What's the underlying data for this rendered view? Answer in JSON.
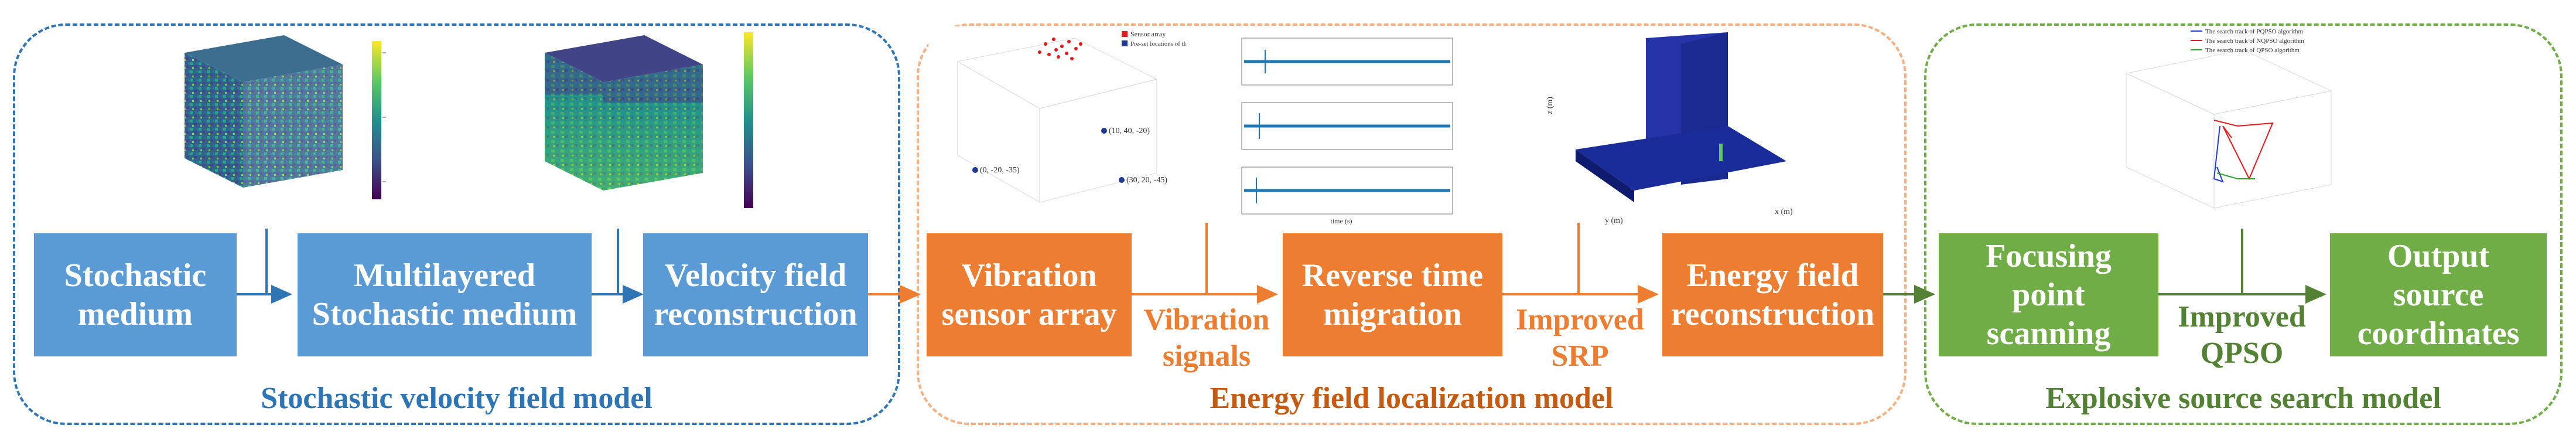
{
  "colors": {
    "blue": "#5B9BD5",
    "blue_dark": "#2E75B6",
    "orange": "#ED7D31",
    "orange_dark": "#C55A11",
    "green": "#70AD47",
    "green_dark": "#548235"
  },
  "sections": {
    "stochastic": {
      "title": "Stochastic velocity field model",
      "boxes": {
        "stochastic_medium": "Stochastic medium",
        "multilayered": "Multilayered Stochastic medium",
        "velocity_field": "Velocity field reconstruction"
      }
    },
    "energy": {
      "title": "Energy field localization model",
      "boxes": {
        "sensor_array": "Vibration sensor array",
        "reverse_time": "Reverse time migration",
        "energy_field": "Energy field reconstruction"
      },
      "arrow_labels": {
        "vibration_signals": "Vibration signals",
        "improved_srp": "Improved SRP"
      }
    },
    "search": {
      "title": "Explosive source search model",
      "boxes": {
        "focusing": "Focusing point scanning",
        "output": "Output source coordinates"
      },
      "arrow_labels": {
        "improved_qpso": "Improved QPSO"
      }
    }
  },
  "thumbnails": {
    "scatter_legend": [
      "Sensor array",
      "Pre-set locations of the sources"
    ],
    "scatter_points": [
      "(0, -20, -35)",
      "(10, 40, -20)",
      "(30, 20, -45)"
    ],
    "signal_xlabel": "time (s)",
    "energy_zlabel": "z (m)",
    "energy_xlabel": "x (m)",
    "energy_ylabel": "y (m)",
    "search_legend": [
      "The search track of PQPSO algorithm",
      "The search track of NQPSO algorithm",
      "The search track of QPSO algorithm"
    ]
  }
}
